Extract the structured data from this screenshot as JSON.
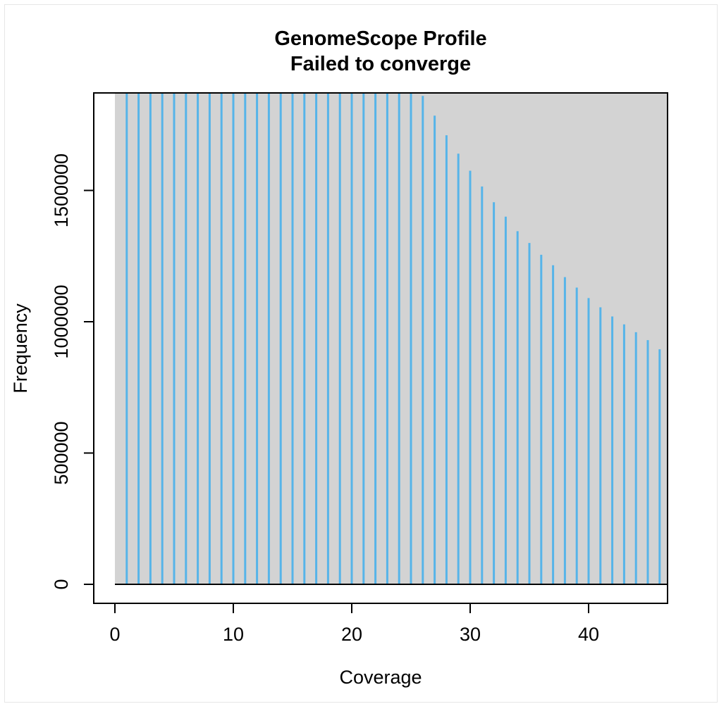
{
  "chart_data": {
    "type": "bar",
    "title": "GenomeScope Profile",
    "subtitle": "Failed to converge",
    "xlabel": "Coverage",
    "ylabel": "Frequency",
    "xlim": [
      0,
      46.6
    ],
    "ylim": [
      0,
      1870000
    ],
    "x_ticks": [
      0,
      10,
      20,
      30,
      40
    ],
    "y_ticks": [
      0,
      500000,
      1000000,
      1500000
    ],
    "y_tick_labels": [
      "0",
      "500000",
      "1000000",
      "1500000"
    ],
    "grid": false,
    "legend": "none",
    "background_color": "#d3d3d3",
    "bar_color": "#56b4e9",
    "series": [
      {
        "x": [
          1,
          2,
          3,
          4,
          5,
          6,
          7,
          8,
          9,
          10,
          11,
          12,
          13,
          14,
          15,
          16,
          17,
          18,
          19,
          20,
          21,
          22,
          23,
          24,
          25,
          26,
          27,
          28,
          29,
          30,
          31,
          32,
          33,
          34,
          35,
          36,
          37,
          38,
          39,
          40,
          41,
          42,
          43,
          44,
          45,
          46
        ],
        "values": [
          1870000,
          1870000,
          1870000,
          1870000,
          1870000,
          1870000,
          1870000,
          1870000,
          1870000,
          1870000,
          1870000,
          1870000,
          1870000,
          1870000,
          1870000,
          1870000,
          1870000,
          1870000,
          1870000,
          1870000,
          1870000,
          1870000,
          1870000,
          1870000,
          1870000,
          1860000,
          1785000,
          1710000,
          1640000,
          1575000,
          1515000,
          1455000,
          1400000,
          1345000,
          1300000,
          1255000,
          1215000,
          1170000,
          1130000,
          1090000,
          1055000,
          1020000,
          990000,
          960000,
          930000,
          895000
        ]
      }
    ]
  }
}
